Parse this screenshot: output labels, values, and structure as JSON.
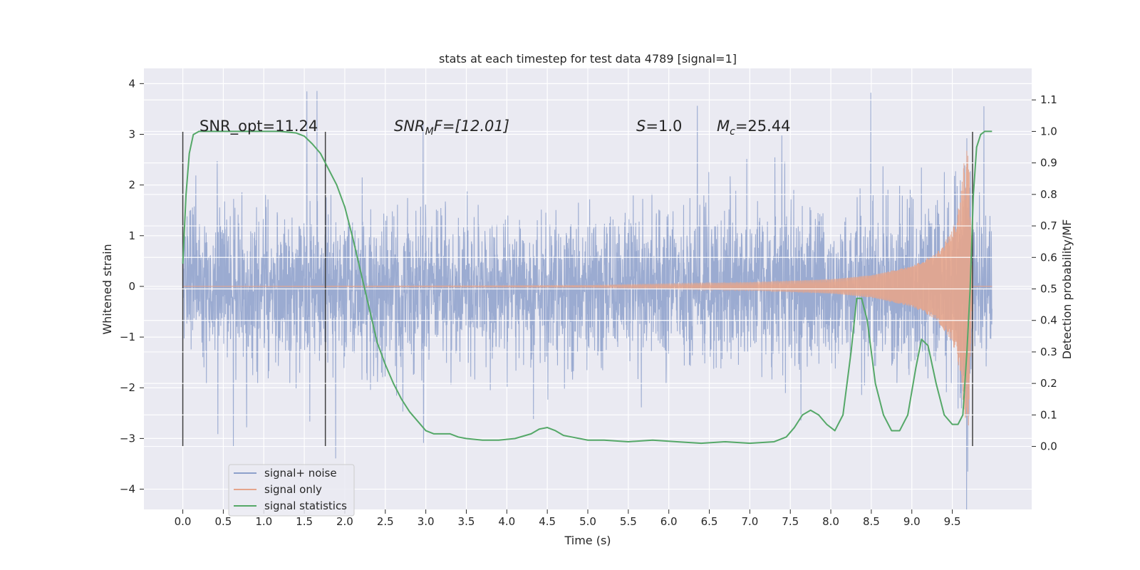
{
  "chart_data": {
    "type": "line",
    "title": "stats at each timestep for test data 4789 [signal=1]",
    "xlabel": "Time (s)",
    "ylabel_left": "Whitened strain",
    "ylabel_right": "Detection probability/MF",
    "xlim": [
      -0.48,
      10.48
    ],
    "ylim_left": [
      -4.4,
      4.3
    ],
    "ylim_right": [
      -0.2,
      1.2
    ],
    "x_ticks": [
      "0.0",
      "0.5",
      "1.0",
      "1.5",
      "2.0",
      "2.5",
      "3.0",
      "3.5",
      "4.0",
      "4.5",
      "5.0",
      "5.5",
      "6.0",
      "6.5",
      "7.0",
      "7.5",
      "8.0",
      "8.5",
      "9.0",
      "9.5"
    ],
    "y_ticks_left": [
      "−4",
      "−3",
      "−2",
      "−1",
      "0",
      "1",
      "2",
      "3",
      "4"
    ],
    "y_ticks_right": [
      "0.0",
      "0.1",
      "0.2",
      "0.3",
      "0.4",
      "0.5",
      "0.6",
      "0.7",
      "0.8",
      "0.9",
      "1.0",
      "1.1"
    ],
    "grid": true,
    "legend_position": "lower-left",
    "annotations": {
      "snr_opt": "SNR_opt=11.24",
      "snr_mf_main": "SNR",
      "snr_mf_sub": "M",
      "snr_mf_rest": "F=[12.01]",
      "s_main": "S",
      "s_rest": "=1.0",
      "mc_main": "M",
      "mc_sub": "c",
      "mc_rest": "=25.44"
    },
    "vertical_markers": [
      0.0,
      1.76,
      9.75
    ],
    "series": [
      {
        "name": "signal+ noise",
        "color": "#8da0cb",
        "axis": "left",
        "description_range": [
          0.0,
          9.99
        ],
        "typical_band": [
          -1.3,
          1.2
        ],
        "extremes": [
          -4.05,
          3.85
        ]
      },
      {
        "name": "signal only",
        "color": "#e5a58c",
        "axis": "left",
        "envelope_x": [
          0.0,
          5.0,
          7.0,
          8.0,
          8.5,
          9.0,
          9.3,
          9.5,
          9.6,
          9.65,
          9.7,
          9.75
        ],
        "envelope_y": [
          0.0,
          0.02,
          0.08,
          0.14,
          0.22,
          0.4,
          0.65,
          1.1,
          1.7,
          2.6,
          2.75,
          0.0
        ]
      },
      {
        "name": "signal statistics",
        "color": "#55a868",
        "axis": "right",
        "x": [
          0.0,
          0.04,
          0.08,
          0.13,
          0.2,
          0.35,
          0.6,
          0.9,
          1.2,
          1.4,
          1.5,
          1.6,
          1.7,
          1.8,
          1.9,
          2.0,
          2.1,
          2.2,
          2.3,
          2.4,
          2.5,
          2.6,
          2.7,
          2.8,
          2.9,
          3.0,
          3.1,
          3.2,
          3.3,
          3.4,
          3.5,
          3.7,
          3.9,
          4.1,
          4.3,
          4.4,
          4.5,
          4.6,
          4.7,
          4.8,
          5.0,
          5.2,
          5.5,
          5.8,
          6.1,
          6.4,
          6.7,
          7.0,
          7.3,
          7.45,
          7.55,
          7.65,
          7.75,
          7.85,
          7.95,
          8.05,
          8.15,
          8.25,
          8.32,
          8.38,
          8.45,
          8.55,
          8.65,
          8.75,
          8.85,
          8.95,
          9.05,
          9.12,
          9.2,
          9.3,
          9.4,
          9.5,
          9.57,
          9.63,
          9.68,
          9.72,
          9.76,
          9.8,
          9.85,
          9.9,
          9.95,
          9.99
        ],
        "y": [
          0.58,
          0.8,
          0.93,
          0.99,
          1.0,
          1.0,
          1.0,
          1.0,
          1.0,
          0.995,
          0.985,
          0.96,
          0.93,
          0.88,
          0.83,
          0.76,
          0.66,
          0.55,
          0.44,
          0.33,
          0.26,
          0.2,
          0.15,
          0.11,
          0.08,
          0.05,
          0.04,
          0.04,
          0.04,
          0.03,
          0.025,
          0.02,
          0.02,
          0.025,
          0.04,
          0.055,
          0.06,
          0.05,
          0.035,
          0.03,
          0.02,
          0.02,
          0.015,
          0.02,
          0.015,
          0.01,
          0.015,
          0.01,
          0.015,
          0.03,
          0.06,
          0.1,
          0.115,
          0.1,
          0.07,
          0.05,
          0.1,
          0.3,
          0.47,
          0.47,
          0.4,
          0.2,
          0.1,
          0.05,
          0.05,
          0.1,
          0.25,
          0.34,
          0.32,
          0.2,
          0.1,
          0.07,
          0.07,
          0.1,
          0.3,
          0.5,
          0.8,
          0.95,
          0.99,
          1.0,
          1.0,
          1.0
        ]
      }
    ]
  }
}
